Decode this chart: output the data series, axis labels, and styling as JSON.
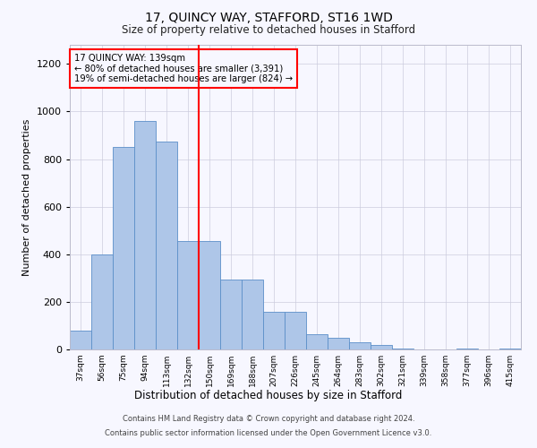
{
  "title": "17, QUINCY WAY, STAFFORD, ST16 1WD",
  "subtitle": "Size of property relative to detached houses in Stafford",
  "xlabel": "Distribution of detached houses by size in Stafford",
  "ylabel": "Number of detached properties",
  "categories": [
    "37sqm",
    "56sqm",
    "75sqm",
    "94sqm",
    "113sqm",
    "132sqm",
    "150sqm",
    "169sqm",
    "188sqm",
    "207sqm",
    "226sqm",
    "245sqm",
    "264sqm",
    "283sqm",
    "302sqm",
    "321sqm",
    "339sqm",
    "358sqm",
    "377sqm",
    "396sqm",
    "415sqm"
  ],
  "values": [
    80,
    400,
    850,
    960,
    875,
    455,
    455,
    295,
    295,
    160,
    160,
    65,
    50,
    30,
    20,
    5,
    0,
    0,
    5,
    0,
    5
  ],
  "bar_color": "#aec6e8",
  "bar_edge_color": "#5b8fc9",
  "vline_x": 5.5,
  "vline_color": "red",
  "annotation_box_text": "17 QUINCY WAY: 139sqm\n← 80% of detached houses are smaller (3,391)\n19% of semi-detached houses are larger (824) →",
  "annotation_box_color": "red",
  "ylim": [
    0,
    1280
  ],
  "yticks": [
    0,
    200,
    400,
    600,
    800,
    1000,
    1200
  ],
  "footer_line1": "Contains HM Land Registry data © Crown copyright and database right 2024.",
  "footer_line2": "Contains public sector information licensed under the Open Government Licence v3.0.",
  "bg_color": "#f7f7ff",
  "grid_color": "#ccccdd"
}
